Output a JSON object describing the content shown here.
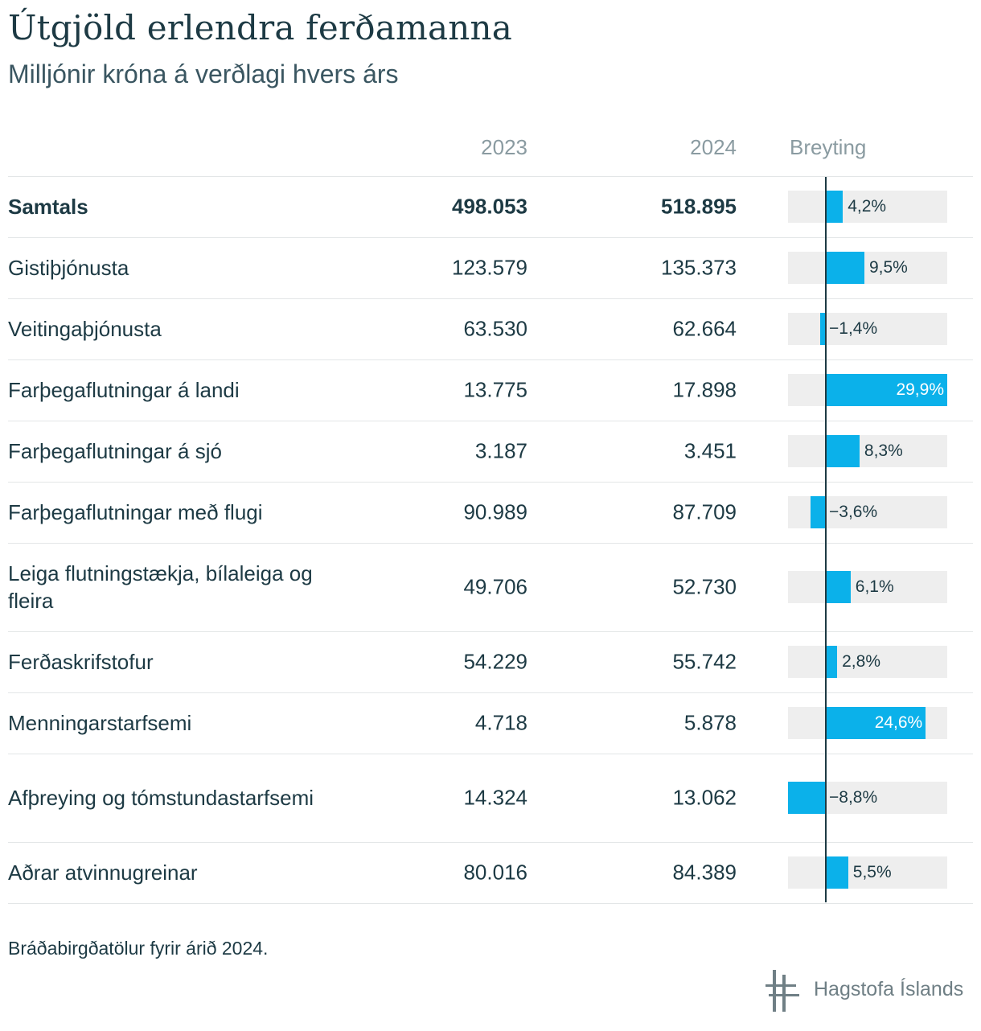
{
  "title": "Útgjöld erlendra ferðamanna",
  "subtitle": "Milljónir króna á verðlagi hvers árs",
  "headers": {
    "y1": "2023",
    "y2": "2024",
    "change": "Breyting"
  },
  "note": "Bráðabirgðatölur fyrir árið 2024.",
  "logo_text": "Hagstofa Íslands",
  "colors": {
    "bar": "#0bb1ea",
    "track": "#eeeeee",
    "text": "#1d3a44",
    "muted": "#8a9ba1"
  },
  "chart_data": {
    "type": "table",
    "columns": [
      "2023",
      "2024",
      "Breyting"
    ],
    "change_range": [
      -8.8,
      29.9
    ],
    "rows": [
      {
        "label": "Samtals",
        "v2023": "498.053",
        "v2024": "518.895",
        "change": 4.2,
        "change_label": "4,2%",
        "bold": true
      },
      {
        "label": "Gistiþjónusta",
        "v2023": "123.579",
        "v2024": "135.373",
        "change": 9.5,
        "change_label": "9,5%"
      },
      {
        "label": "Veitingaþjónusta",
        "v2023": "63.530",
        "v2024": "62.664",
        "change": -1.4,
        "change_label": "−1,4%"
      },
      {
        "label": "Farþegaflutningar á landi",
        "v2023": "13.775",
        "v2024": "17.898",
        "change": 29.9,
        "change_label": "29,9%"
      },
      {
        "label": "Farþegaflutningar á sjó",
        "v2023": "3.187",
        "v2024": "3.451",
        "change": 8.3,
        "change_label": "8,3%"
      },
      {
        "label": "Farþegaflutningar með flugi",
        "v2023": "90.989",
        "v2024": "87.709",
        "change": -3.6,
        "change_label": "−3,6%"
      },
      {
        "label": "Leiga flutningstækja, bílaleiga og fleira",
        "v2023": "49.706",
        "v2024": "52.730",
        "change": 6.1,
        "change_label": "6,1%"
      },
      {
        "label": "Ferðaskrifstofur",
        "v2023": "54.229",
        "v2024": "55.742",
        "change": 2.8,
        "change_label": "2,8%"
      },
      {
        "label": "Menningarstarfsemi",
        "v2023": "4.718",
        "v2024": "5.878",
        "change": 24.6,
        "change_label": "24,6%"
      },
      {
        "label": "Afþreying og tómstundastarfsemi",
        "v2023": "14.324",
        "v2024": "13.062",
        "change": -8.8,
        "change_label": "−8,8%"
      },
      {
        "label": "Aðrar atvinnugreinar",
        "v2023": "80.016",
        "v2024": "84.389",
        "change": 5.5,
        "change_label": "5,5%"
      }
    ]
  }
}
